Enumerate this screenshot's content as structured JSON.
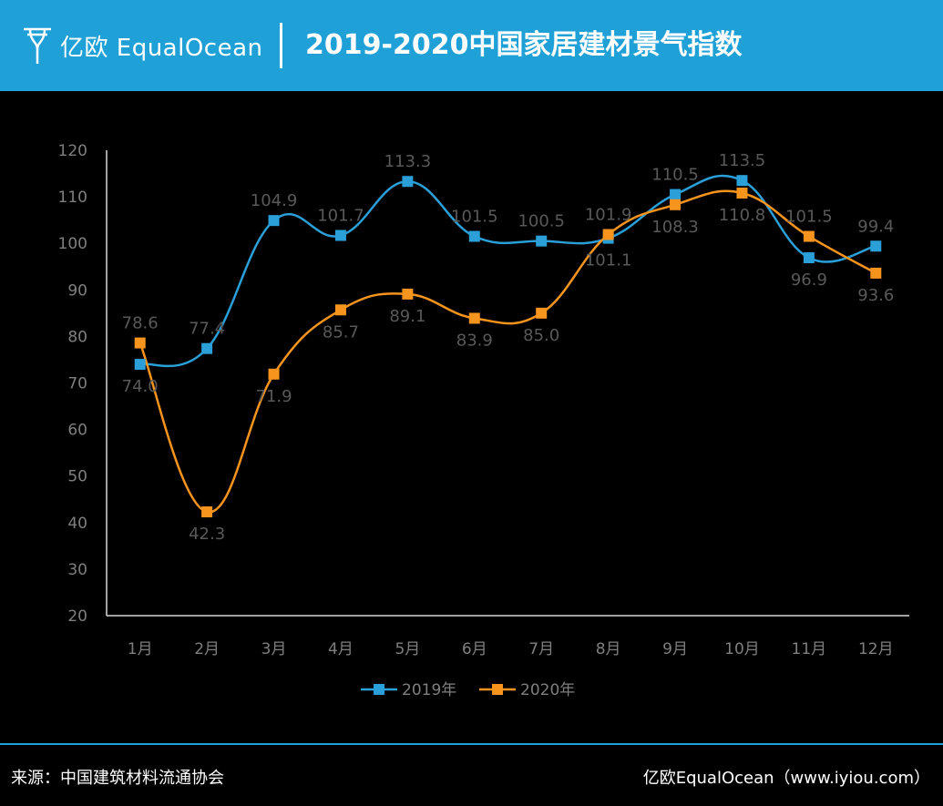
{
  "header": {
    "logo_text": "亿欧 EqualOcean",
    "title": "2019-2020中国家居建材景气指数",
    "background_color": "#1fa0d7"
  },
  "chart_data": {
    "type": "line",
    "title": "2019-2020中国家居建材景气指数",
    "categories": [
      "1月",
      "2月",
      "3月",
      "4月",
      "5月",
      "6月",
      "7月",
      "8月",
      "9月",
      "10月",
      "11月",
      "12月"
    ],
    "series": [
      {
        "name": "2019年",
        "color": "#2a9fd8",
        "values": [
          74.0,
          77.4,
          104.9,
          101.7,
          113.3,
          101.5,
          100.5,
          101.1,
          110.5,
          113.5,
          96.9,
          99.4
        ],
        "labels": [
          "74.0",
          "77.4",
          "104.9",
          "101.7",
          "113.3",
          "101.5",
          "100.5",
          "101.1",
          "110.5",
          "113.5",
          "96.9",
          "99.4"
        ]
      },
      {
        "name": "2020年",
        "color": "#f7941e",
        "values": [
          78.6,
          42.3,
          71.9,
          85.7,
          89.1,
          83.9,
          85.0,
          101.9,
          108.3,
          110.8,
          101.5,
          93.6
        ],
        "labels": [
          "78.6",
          "42.3",
          "71.9",
          "85.7",
          "89.1",
          "83.9",
          "85.0",
          "101.9",
          "108.3",
          "110.8",
          "101.5",
          "93.6"
        ]
      }
    ],
    "ylim": [
      20,
      120
    ],
    "yticks": [
      "20",
      "30",
      "40",
      "50",
      "60",
      "70",
      "80",
      "90",
      "100",
      "110",
      "120"
    ],
    "xlabel": "",
    "ylabel": "",
    "grid": false,
    "legend": "bottom-center"
  },
  "footer": {
    "source": "来源：中国建筑材料流通协会",
    "brand": "亿欧EqualOcean（www.iyiou.com）"
  }
}
